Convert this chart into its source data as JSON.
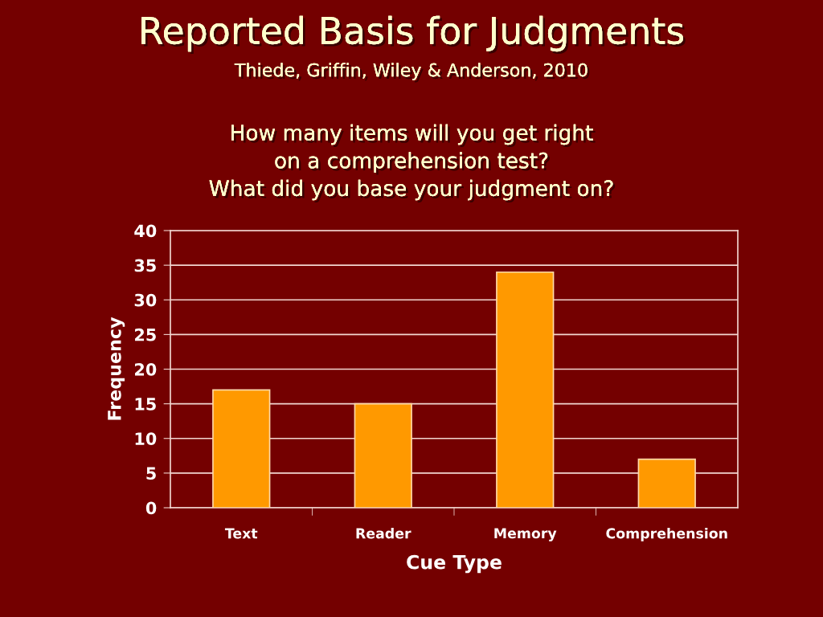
{
  "chart_data": {
    "type": "bar",
    "title": "Reported Basis for Judgments",
    "subtitle": "Thiede, Griffin, Wiley & Anderson, 2010",
    "annotations": [
      "How many items will you get right\non a comprehension test?\nWhat did you base your judgment on?"
    ],
    "xlabel": "Cue Type",
    "ylabel": "Frequency",
    "categories": [
      "Text",
      "Reader",
      "Memory",
      "Comprehension"
    ],
    "values": [
      17,
      15,
      34,
      7
    ],
    "color": "#ff9900",
    "ylim": [
      0,
      40
    ],
    "yticks": [
      0,
      5,
      10,
      15,
      20,
      25,
      30,
      35,
      40
    ],
    "grid": "y"
  }
}
